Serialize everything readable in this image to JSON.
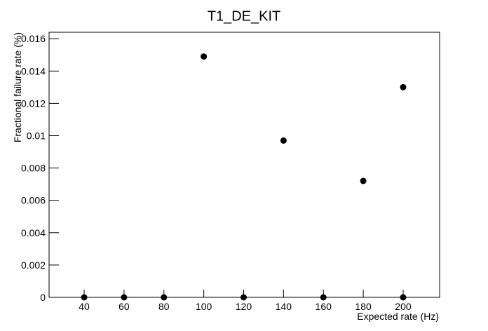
{
  "chart_data": {
    "type": "scatter",
    "title": "T1_DE_KIT",
    "x_label": "Expected rate (Hz)",
    "y_label": "Fractional failure rate (%)",
    "series": [
      {
        "name": "T1_DE_KIT",
        "color": "#000000",
        "x": [
          40,
          60,
          80,
          100,
          120,
          140,
          160,
          180,
          200,
          200
        ],
        "values": [
          0,
          0,
          0,
          0.0149,
          0,
          0.0097,
          0,
          0.0072,
          0.013,
          0
        ]
      }
    ],
    "xlim": [
      22.4,
      218.3
    ],
    "ylim": [
      0,
      0.0164
    ],
    "xticks": [
      40,
      60,
      80,
      100,
      120,
      140,
      160,
      180,
      200
    ],
    "yticks": [
      0,
      0.002,
      0.004,
      0.006,
      0.008,
      0.01,
      0.012,
      0.014,
      0.016
    ]
  }
}
